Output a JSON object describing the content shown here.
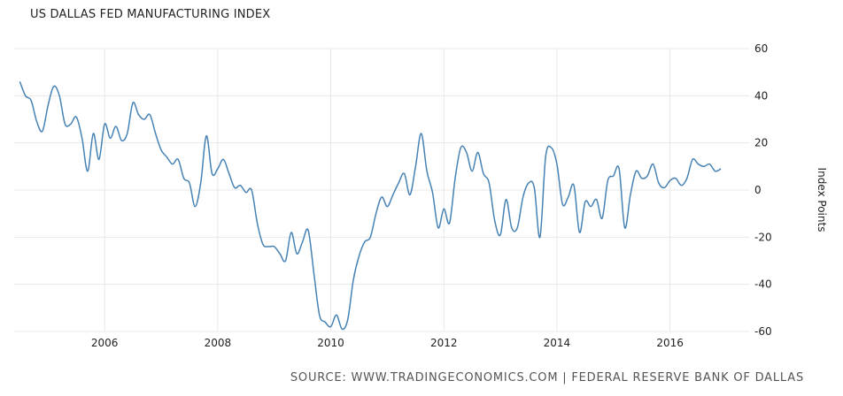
{
  "title": "US DALLAS FED MANUFACTURING INDEX",
  "source": "SOURCE: WWW.TRADINGECONOMICS.COM | FEDERAL RESERVE BANK OF DALLAS",
  "colors": {
    "line": "#4682b4",
    "grid": "#e8e8e8"
  },
  "chart_data": {
    "type": "line",
    "title": "US DALLAS FED MANUFACTURING INDEX",
    "ylabel": "Index Points",
    "xlabel": "",
    "xlim": [
      2004.4,
      2017.4
    ],
    "ylim": [
      -60,
      60
    ],
    "x_ticks": [
      "2006",
      "2008",
      "2010",
      "2012",
      "2014",
      "2016"
    ],
    "y_ticks": [
      "60",
      "40",
      "20",
      "0",
      "-20",
      "-40",
      "-60"
    ],
    "grid": true,
    "series": [
      {
        "values": [
          [
            2004.5,
            46
          ],
          [
            2004.6,
            40
          ],
          [
            2004.7,
            38
          ],
          [
            2004.8,
            29
          ],
          [
            2004.9,
            25
          ],
          [
            2005.0,
            36
          ],
          [
            2005.1,
            44
          ],
          [
            2005.2,
            40
          ],
          [
            2005.3,
            28
          ],
          [
            2005.4,
            28
          ],
          [
            2005.5,
            31
          ],
          [
            2005.6,
            22
          ],
          [
            2005.7,
            8
          ],
          [
            2005.8,
            24
          ],
          [
            2005.9,
            13
          ],
          [
            2006.0,
            28
          ],
          [
            2006.1,
            22
          ],
          [
            2006.2,
            27
          ],
          [
            2006.3,
            21
          ],
          [
            2006.4,
            24
          ],
          [
            2006.5,
            37
          ],
          [
            2006.6,
            32
          ],
          [
            2006.7,
            30
          ],
          [
            2006.8,
            32
          ],
          [
            2006.9,
            24
          ],
          [
            2007.0,
            17
          ],
          [
            2007.1,
            14
          ],
          [
            2007.2,
            11
          ],
          [
            2007.3,
            13
          ],
          [
            2007.4,
            5
          ],
          [
            2007.5,
            3
          ],
          [
            2007.6,
            -7
          ],
          [
            2007.7,
            3
          ],
          [
            2007.8,
            23
          ],
          [
            2007.9,
            7
          ],
          [
            2008.0,
            9
          ],
          [
            2008.1,
            13
          ],
          [
            2008.2,
            7
          ],
          [
            2008.3,
            1
          ],
          [
            2008.4,
            2
          ],
          [
            2008.5,
            -1
          ],
          [
            2008.6,
            0
          ],
          [
            2008.7,
            -14
          ],
          [
            2008.8,
            -23
          ],
          [
            2008.9,
            -24
          ],
          [
            2009.0,
            -24
          ],
          [
            2009.1,
            -27
          ],
          [
            2009.2,
            -30
          ],
          [
            2009.3,
            -18
          ],
          [
            2009.4,
            -27
          ],
          [
            2009.5,
            -22
          ],
          [
            2009.6,
            -17
          ],
          [
            2009.7,
            -35
          ],
          [
            2009.8,
            -53
          ],
          [
            2009.9,
            -56
          ],
          [
            2010.0,
            -58
          ],
          [
            2010.1,
            -53
          ],
          [
            2010.2,
            -59
          ],
          [
            2010.3,
            -55
          ],
          [
            2010.4,
            -38
          ],
          [
            2010.5,
            -28
          ],
          [
            2010.6,
            -22
          ],
          [
            2010.7,
            -20
          ],
          [
            2010.8,
            -10
          ],
          [
            2010.9,
            -3
          ],
          [
            2011.0,
            -7
          ],
          [
            2011.1,
            -2
          ],
          [
            2011.2,
            3
          ],
          [
            2011.3,
            7
          ],
          [
            2011.4,
            -2
          ],
          [
            2011.5,
            10
          ],
          [
            2011.6,
            24
          ],
          [
            2011.7,
            8
          ],
          [
            2011.8,
            -1
          ],
          [
            2011.9,
            -16
          ],
          [
            2012.0,
            -8
          ],
          [
            2012.1,
            -14
          ],
          [
            2012.2,
            5
          ],
          [
            2012.3,
            18
          ],
          [
            2012.4,
            16
          ],
          [
            2012.5,
            8
          ],
          [
            2012.6,
            16
          ],
          [
            2012.7,
            7
          ],
          [
            2012.8,
            3
          ],
          [
            2012.9,
            -13
          ],
          [
            2013.0,
            -19
          ],
          [
            2013.1,
            -4
          ],
          [
            2013.2,
            -16
          ],
          [
            2013.3,
            -16
          ],
          [
            2013.4,
            -3
          ],
          [
            2013.5,
            3
          ],
          [
            2013.6,
            1
          ],
          [
            2013.7,
            -20
          ],
          [
            2013.8,
            14
          ],
          [
            2013.9,
            18
          ],
          [
            2014.0,
            11
          ],
          [
            2014.1,
            -6
          ],
          [
            2014.2,
            -3
          ],
          [
            2014.3,
            2
          ],
          [
            2014.4,
            -18
          ],
          [
            2014.5,
            -5
          ],
          [
            2014.6,
            -7
          ],
          [
            2014.7,
            -4
          ],
          [
            2014.8,
            -12
          ],
          [
            2014.9,
            4
          ],
          [
            2015.0,
            6
          ],
          [
            2015.1,
            9
          ],
          [
            2015.2,
            -16
          ],
          [
            2015.3,
            -2
          ],
          [
            2015.4,
            8
          ],
          [
            2015.5,
            5
          ],
          [
            2015.6,
            6
          ],
          [
            2015.7,
            11
          ],
          [
            2015.8,
            3
          ],
          [
            2015.9,
            1
          ],
          [
            2016.0,
            4
          ],
          [
            2016.1,
            5
          ],
          [
            2016.2,
            2
          ],
          [
            2016.3,
            5
          ],
          [
            2016.4,
            13
          ],
          [
            2016.5,
            11
          ],
          [
            2016.6,
            10
          ],
          [
            2016.7,
            11
          ],
          [
            2016.8,
            8
          ],
          [
            2016.9,
            9
          ]
        ]
      }
    ]
  }
}
